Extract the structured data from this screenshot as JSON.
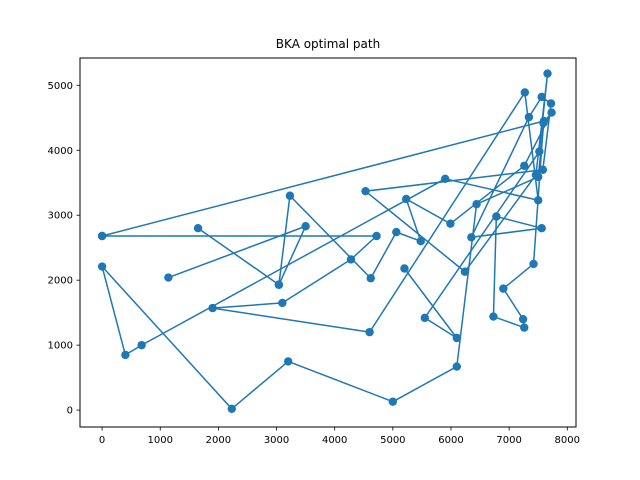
{
  "chart_data": {
    "type": "line",
    "title": "BKA optimal path",
    "xlabel": "",
    "ylabel": "",
    "xlim": [
      -380,
      8150
    ],
    "ylim": [
      -260,
      5420
    ],
    "xticks": [
      0,
      1000,
      2000,
      3000,
      4000,
      5000,
      6000,
      7000,
      8000
    ],
    "yticks": [
      0,
      1000,
      2000,
      3000,
      4000,
      5000
    ],
    "grid": false,
    "series": [
      {
        "color": "#1f77b4",
        "marker": "circle",
        "points": [
          [
            0,
            2680
          ],
          [
            7600,
            4450
          ],
          [
            7500,
            3590
          ],
          [
            6440,
            3170
          ],
          [
            6100,
            670
          ],
          [
            5000,
            130
          ],
          [
            3200,
            750
          ],
          [
            2230,
            20
          ],
          [
            0,
            2210
          ],
          [
            400,
            850
          ],
          [
            680,
            1000
          ],
          [
            5900,
            3560
          ],
          [
            7500,
            3230
          ],
          [
            7270,
            4890
          ],
          [
            4600,
            1200
          ],
          [
            1900,
            1570
          ],
          [
            3100,
            1650
          ],
          [
            4280,
            2320
          ],
          [
            4720,
            2680
          ],
          [
            0,
            2680
          ]
        ]
      },
      {
        "color": "#1f77b4",
        "marker": "circle",
        "points": [
          [
            5200,
            2180
          ],
          [
            6100,
            1110
          ],
          [
            5550,
            1420
          ],
          [
            7520,
            3980
          ],
          [
            7660,
            5180
          ],
          [
            7460,
            3620
          ],
          [
            6240,
            2130
          ],
          [
            4530,
            3370
          ],
          [
            7580,
            3700
          ],
          [
            7720,
            4720
          ],
          [
            7560,
            4820
          ],
          [
            7340,
            4510
          ],
          [
            6350,
            2660
          ],
          [
            7560,
            2800
          ],
          [
            6780,
            2980
          ],
          [
            6730,
            1440
          ],
          [
            7260,
            1270
          ],
          [
            7240,
            1400
          ],
          [
            6900,
            1870
          ],
          [
            7420,
            2250
          ],
          [
            7590,
            4420
          ],
          [
            7730,
            4580
          ],
          [
            7260,
            3760
          ],
          [
            5990,
            2870
          ],
          [
            5230,
            3250
          ],
          [
            5480,
            2600
          ],
          [
            5060,
            2740
          ],
          [
            4620,
            2030
          ],
          [
            3230,
            3300
          ],
          [
            3040,
            1930
          ],
          [
            3500,
            2830
          ],
          [
            1140,
            2040
          ]
        ]
      },
      {
        "color": "#1f77b4",
        "marker": "circle",
        "points": [
          [
            1650,
            2800
          ],
          [
            3040,
            1930
          ]
        ]
      }
    ]
  }
}
